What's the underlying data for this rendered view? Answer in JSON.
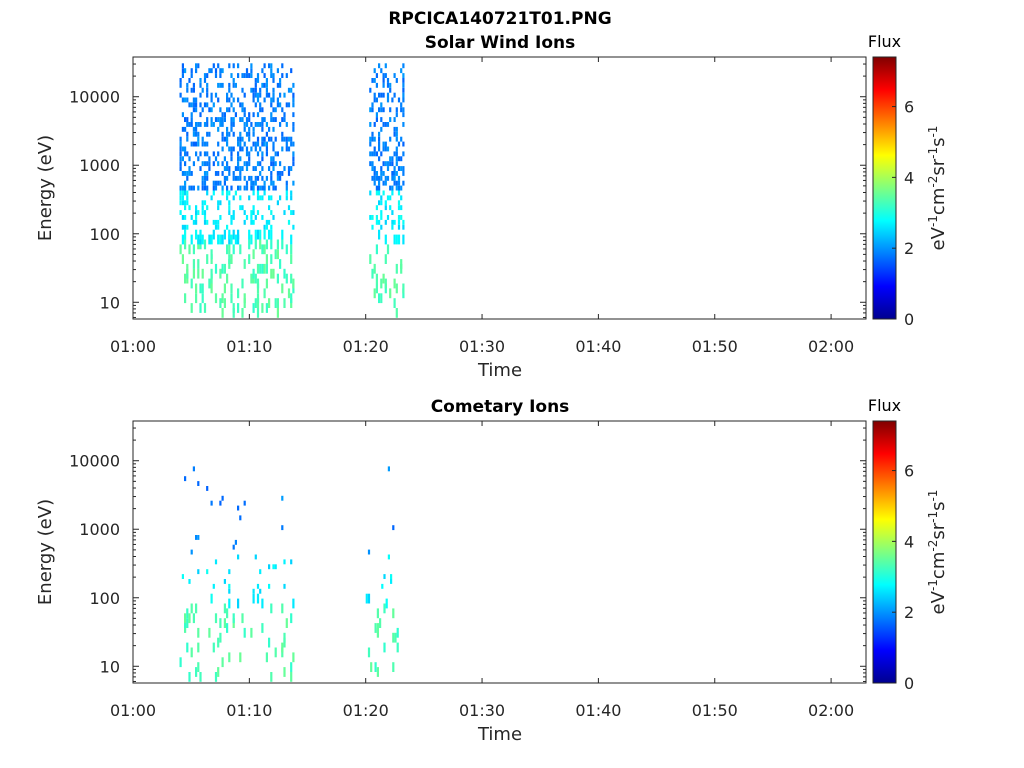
{
  "figure": {
    "title": "RPCICA140721T01.PNG"
  },
  "chart_data": [
    {
      "type": "heatmap",
      "title": "Solar Wind Ions",
      "xlabel": "Time",
      "ylabel": "Energy (eV)",
      "x_range": [
        "01:00",
        "02:03"
      ],
      "x_ticks": [
        "01:00",
        "01:10",
        "01:20",
        "01:30",
        "01:40",
        "01:50",
        "02:00"
      ],
      "y_scale": "log",
      "y_range": [
        5.7,
        38000
      ],
      "y_ticks": [
        "10",
        "100",
        "1000",
        "10000"
      ],
      "colorbar": {
        "title": "Flux",
        "label": "eV-1cm-2sr-1s-1",
        "range": [
          0,
          7.4
        ],
        "ticks": [
          "0",
          "2",
          "4",
          "6"
        ],
        "colormap": "jet"
      },
      "bursts": [
        {
          "start_min": 4.0,
          "end_min": 13.8,
          "max_energy_eV": 30000
        },
        {
          "start_min": 20.3,
          "end_min": 23.2,
          "max_energy_eV": 30000
        }
      ]
    },
    {
      "type": "heatmap",
      "title": "Cometary Ions",
      "xlabel": "Time",
      "ylabel": "Energy (eV)",
      "x_range": [
        "01:00",
        "02:03"
      ],
      "x_ticks": [
        "01:00",
        "01:10",
        "01:20",
        "01:30",
        "01:40",
        "01:50",
        "02:00"
      ],
      "y_scale": "log",
      "y_range": [
        5.7,
        38000
      ],
      "y_ticks": [
        "10",
        "100",
        "1000",
        "10000"
      ],
      "colorbar": {
        "title": "Flux",
        "label": "eV-1cm-2sr-1s-1",
        "range": [
          0,
          7.4
        ],
        "ticks": [
          "0",
          "2",
          "4",
          "6"
        ],
        "colormap": "jet"
      },
      "bursts": [
        {
          "start_min": 4.0,
          "end_min": 13.8,
          "max_energy_eV": 11000
        },
        {
          "start_min": 20.0,
          "end_min": 22.8,
          "max_energy_eV": 11000
        }
      ]
    }
  ]
}
